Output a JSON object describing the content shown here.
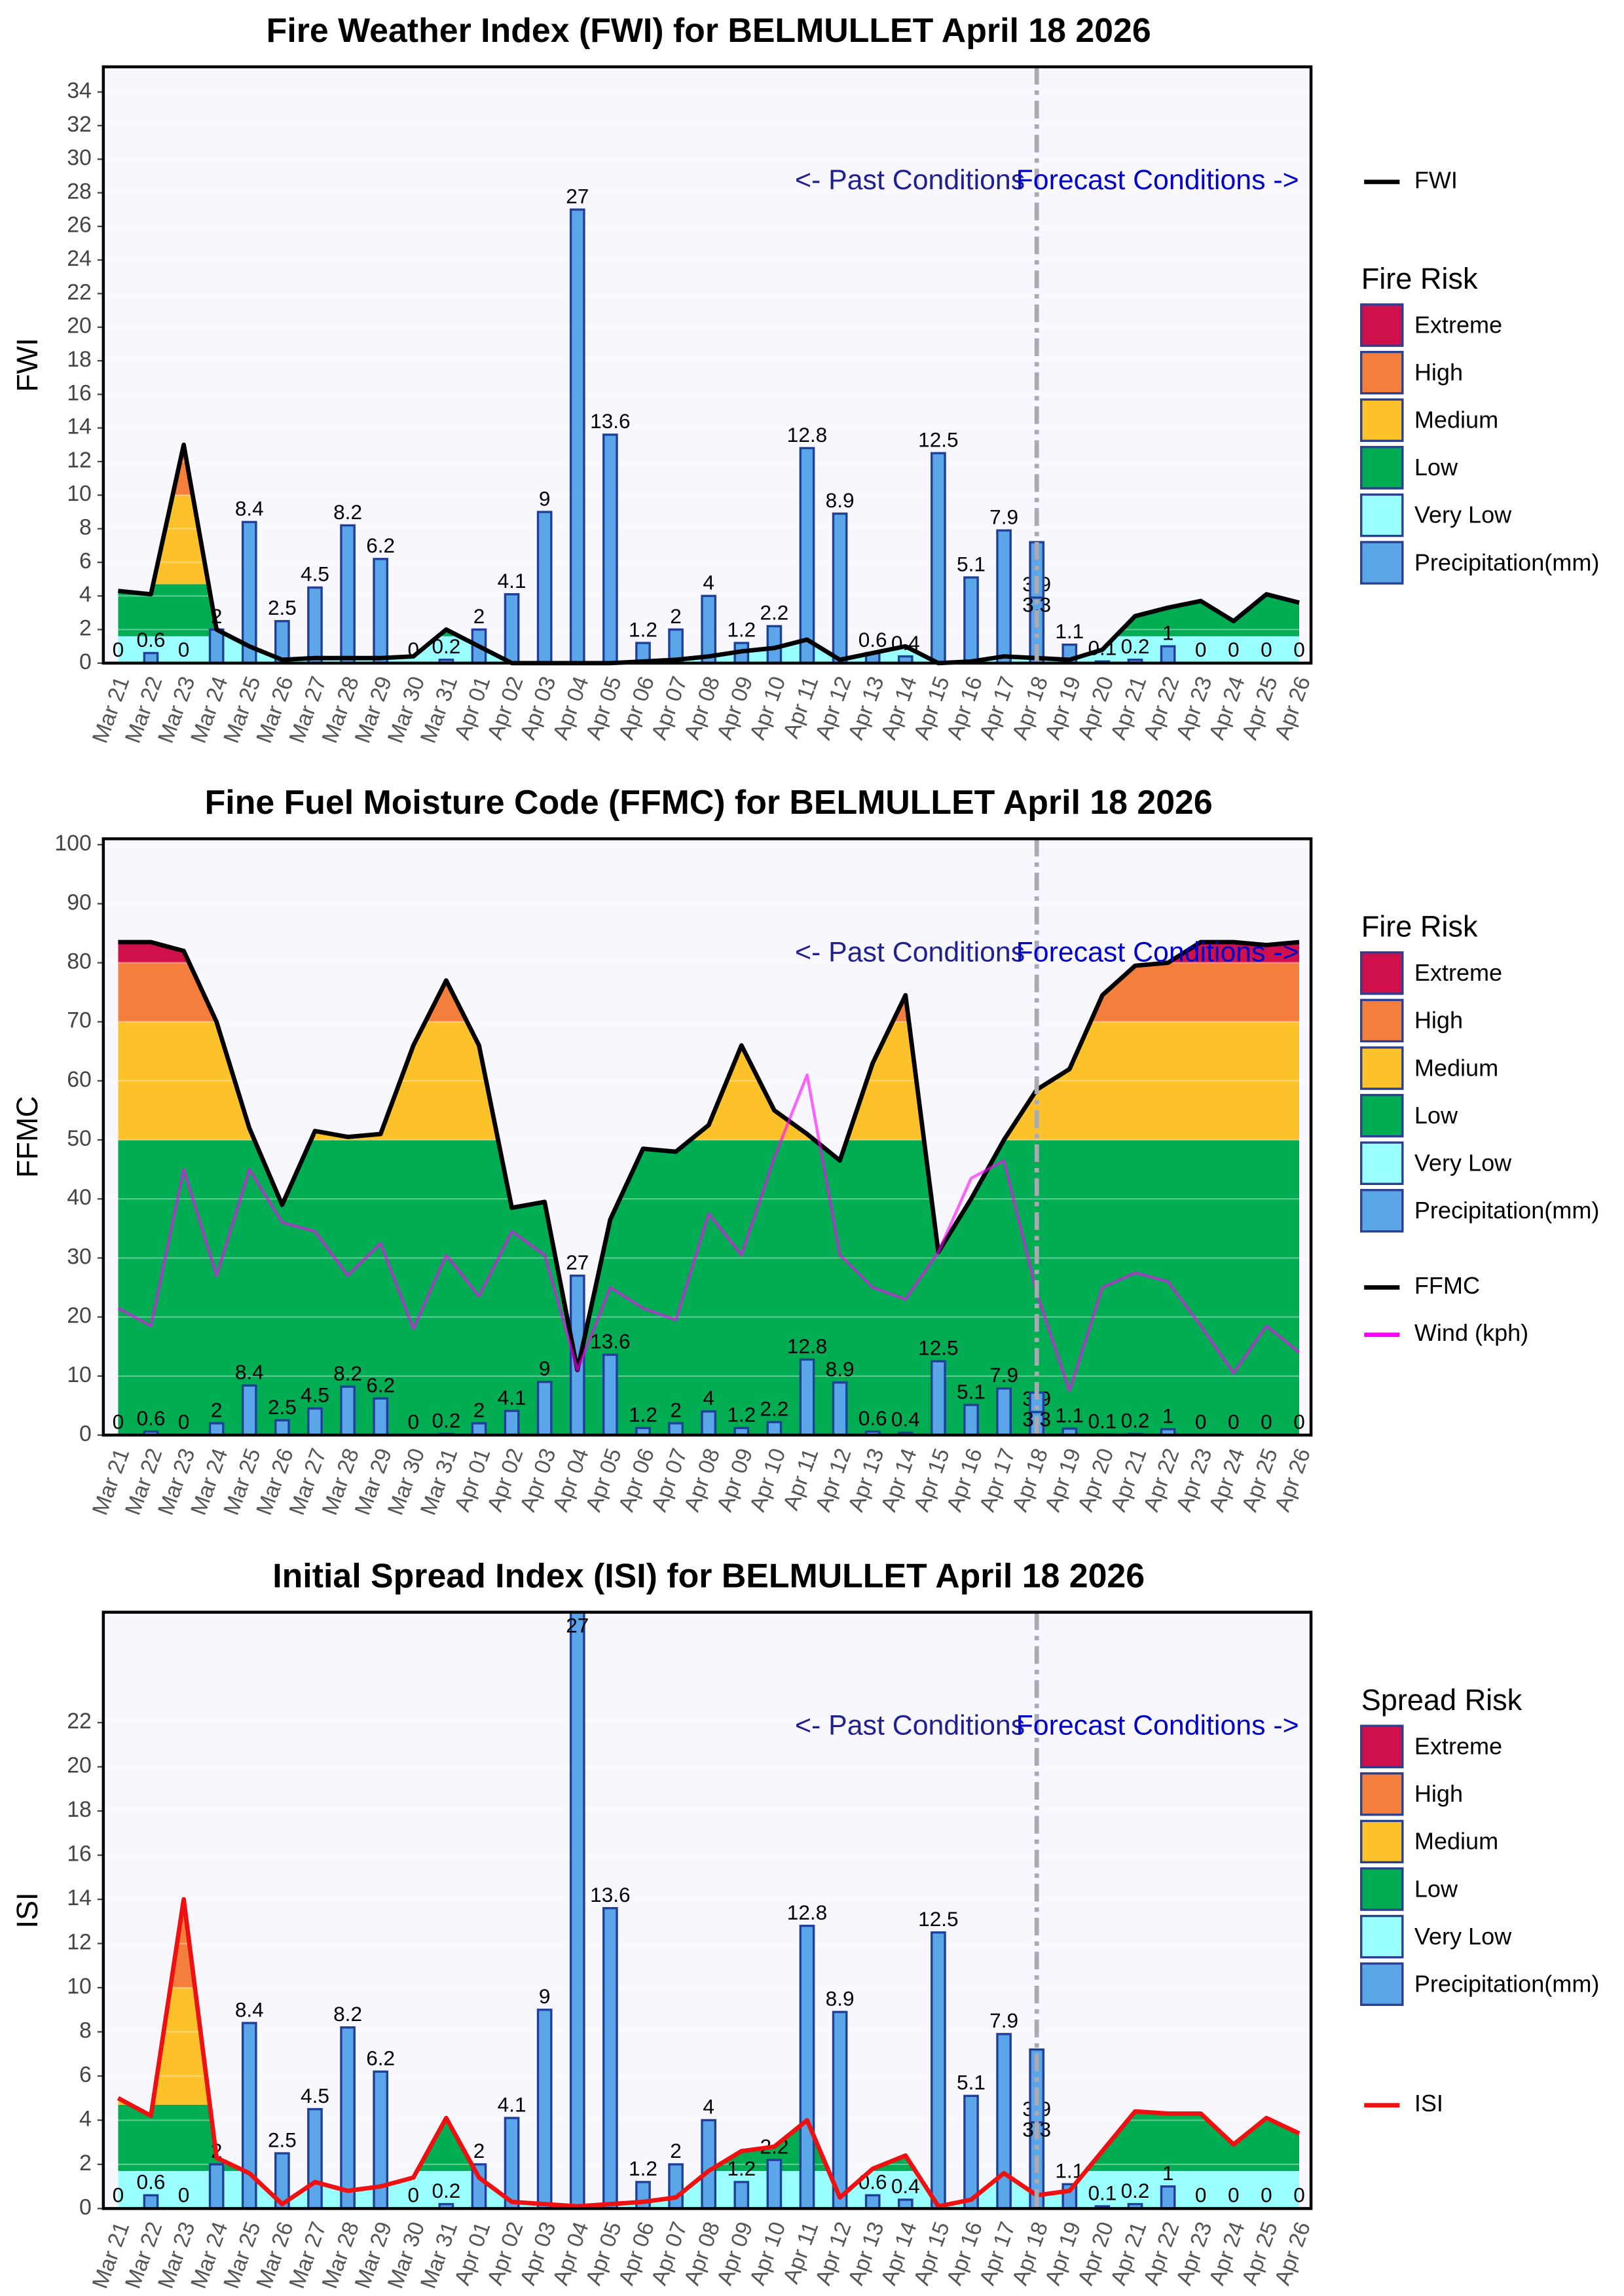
{
  "chart_data": [
    {
      "type": "line",
      "title": "Fire Weather Index (FWI) for BELMULLET April 18 2026",
      "y_label": "FWI",
      "categories": [
        "Mar 21",
        "Mar 22",
        "Mar 23",
        "Mar 24",
        "Mar 25",
        "Mar 26",
        "Mar 27",
        "Mar 28",
        "Mar 29",
        "Mar 30",
        "Mar 31",
        "Apr 01",
        "Apr 02",
        "Apr 03",
        "Apr 04",
        "Apr 05",
        "Apr 06",
        "Apr 07",
        "Apr 08",
        "Apr 09",
        "Apr 10",
        "Apr 11",
        "Apr 12",
        "Apr 13",
        "Apr 14",
        "Apr 15",
        "Apr 16",
        "Apr 17",
        "Apr 18",
        "Apr 19",
        "Apr 20",
        "Apr 21",
        "Apr 22",
        "Apr 23",
        "Apr 24",
        "Apr 25",
        "Apr 26"
      ],
      "ylim": [
        0,
        35.5
      ],
      "yticks": [
        0,
        2,
        4,
        6,
        8,
        10,
        12,
        14,
        16,
        18,
        20,
        22,
        24,
        26,
        28,
        30,
        32,
        34
      ],
      "grid": true,
      "legend_title": "Fire Risk",
      "bands": [
        {
          "name": "Very Low",
          "color": "#99ffff",
          "to": 1.6
        },
        {
          "name": "Low",
          "color": "#00ad52",
          "to": 4.7
        },
        {
          "name": "Medium",
          "color": "#fdc12a",
          "to": 10
        },
        {
          "name": "High",
          "color": "#f47f3c",
          "to": 18
        },
        {
          "name": "Extreme",
          "color": "#d0104a"
        }
      ],
      "precipitation": {
        "name": "Precipitation(mm)",
        "color": "#5aa6e8",
        "values": [
          0,
          0.6,
          0,
          2,
          8.4,
          2.5,
          4.5,
          8.2,
          6.2,
          0,
          0.2,
          2,
          4.1,
          9,
          27,
          13.6,
          1.2,
          2,
          4,
          1.2,
          2.2,
          12.8,
          8.9,
          0.6,
          0.4,
          12.5,
          5.1,
          7.9,
          3.9,
          1.1,
          0.1,
          0.2,
          1,
          0,
          0,
          0,
          0
        ],
        "forecast_values": [
          null,
          null,
          null,
          null,
          null,
          null,
          null,
          null,
          null,
          null,
          null,
          null,
          null,
          null,
          null,
          null,
          null,
          null,
          null,
          null,
          null,
          null,
          null,
          null,
          null,
          null,
          null,
          null,
          3.3,
          null,
          null,
          null,
          null,
          null,
          null,
          null,
          null
        ]
      },
      "series": [
        {
          "name": "FWI",
          "color": "#000000",
          "values": [
            4.3,
            4.1,
            13,
            2,
            1,
            0.2,
            0.3,
            0.3,
            0.3,
            0.4,
            2,
            1,
            0,
            0,
            0,
            0,
            0.1,
            0.2,
            0.4,
            0.7,
            0.9,
            1.4,
            0.2,
            0.6,
            1,
            0,
            0.1,
            0.4,
            0.3,
            0.2,
            0.8,
            2.8,
            3.3,
            3.7,
            2.5,
            4.1,
            3.6
          ]
        }
      ],
      "forecast_start": "Apr 18",
      "annotations": {
        "past": "<- Past Conditions",
        "forecast": "Forecast Conditions ->"
      }
    },
    {
      "type": "line",
      "title": "Fine Fuel Moisture Code (FFMC) for BELMULLET April 18 2026",
      "y_label": "FFMC",
      "categories": [
        "Mar 21",
        "Mar 22",
        "Mar 23",
        "Mar 24",
        "Mar 25",
        "Mar 26",
        "Mar 27",
        "Mar 28",
        "Mar 29",
        "Mar 30",
        "Mar 31",
        "Apr 01",
        "Apr 02",
        "Apr 03",
        "Apr 04",
        "Apr 05",
        "Apr 06",
        "Apr 07",
        "Apr 08",
        "Apr 09",
        "Apr 10",
        "Apr 11",
        "Apr 12",
        "Apr 13",
        "Apr 14",
        "Apr 15",
        "Apr 16",
        "Apr 17",
        "Apr 18",
        "Apr 19",
        "Apr 20",
        "Apr 21",
        "Apr 22",
        "Apr 23",
        "Apr 24",
        "Apr 25",
        "Apr 26"
      ],
      "ylim": [
        0,
        101
      ],
      "yticks": [
        0,
        10,
        20,
        30,
        40,
        50,
        60,
        70,
        80,
        90,
        100
      ],
      "grid": true,
      "legend_title": "Fire Risk",
      "bands": [
        {
          "name": "Very Low",
          "color": "#99ffff",
          "to": 0
        },
        {
          "name": "Low",
          "color": "#00ad52",
          "to": 50
        },
        {
          "name": "Medium",
          "color": "#fdc12a",
          "to": 70
        },
        {
          "name": "High",
          "color": "#f47f3c",
          "to": 80
        },
        {
          "name": "Extreme",
          "color": "#d0104a"
        }
      ],
      "precipitation": {
        "name": "Precipitation(mm)",
        "color": "#5aa6e8",
        "values": [
          0,
          0.6,
          0,
          2,
          8.4,
          2.5,
          4.5,
          8.2,
          6.2,
          0,
          0.2,
          2,
          4.1,
          9,
          27,
          13.6,
          1.2,
          2,
          4,
          1.2,
          2.2,
          12.8,
          8.9,
          0.6,
          0.4,
          12.5,
          5.1,
          7.9,
          3.9,
          1.1,
          0.1,
          0.2,
          1,
          0,
          0,
          0,
          0
        ],
        "forecast_values": [
          null,
          null,
          null,
          null,
          null,
          null,
          null,
          null,
          null,
          null,
          null,
          null,
          null,
          null,
          null,
          null,
          null,
          null,
          null,
          null,
          null,
          null,
          null,
          null,
          null,
          null,
          null,
          null,
          3.3,
          null,
          null,
          null,
          null,
          null,
          null,
          null,
          null
        ]
      },
      "series": [
        {
          "name": "FFMC",
          "color": "#000000",
          "values": [
            83.5,
            83.5,
            82,
            70,
            52,
            39,
            51.5,
            50.5,
            51,
            66,
            77,
            66,
            38.5,
            39.5,
            11,
            36.5,
            48.5,
            48,
            52.5,
            66,
            55,
            51,
            46.5,
            63,
            74.5,
            31,
            40,
            50,
            58.5,
            62,
            74.5,
            79.5,
            80,
            83.5,
            83.5,
            83,
            83.5
          ]
        },
        {
          "name": "Wind (kph)",
          "color": "#ff00ff",
          "values": [
            21.5,
            18.5,
            45,
            27,
            45,
            36,
            34.5,
            27,
            32.5,
            18,
            30.5,
            23.5,
            34.5,
            30.5,
            11,
            25,
            21.5,
            19.5,
            37.5,
            30.5,
            47,
            61,
            30.5,
            25,
            23,
            31,
            43.5,
            46.5,
            24,
            7.5,
            25,
            27.5,
            26,
            18.5,
            10.5,
            18.5,
            14
          ]
        }
      ],
      "forecast_start": "Apr 18",
      "annotations": {
        "past": "<- Past Conditions",
        "forecast": "Forecast Conditions ->"
      }
    },
    {
      "type": "line",
      "title": "Initial Spread Index (ISI) for BELMULLET April 18 2026",
      "y_label": "ISI",
      "categories": [
        "Mar 21",
        "Mar 22",
        "Mar 23",
        "Mar 24",
        "Mar 25",
        "Mar 26",
        "Mar 27",
        "Mar 28",
        "Mar 29",
        "Mar 30",
        "Mar 31",
        "Apr 01",
        "Apr 02",
        "Apr 03",
        "Apr 04",
        "Apr 05",
        "Apr 06",
        "Apr 07",
        "Apr 08",
        "Apr 09",
        "Apr 10",
        "Apr 11",
        "Apr 12",
        "Apr 13",
        "Apr 14",
        "Apr 15",
        "Apr 16",
        "Apr 17",
        "Apr 18",
        "Apr 19",
        "Apr 20",
        "Apr 21",
        "Apr 22",
        "Apr 23",
        "Apr 24",
        "Apr 25",
        "Apr 26"
      ],
      "ylim": [
        0,
        27
      ],
      "yticks": [
        0,
        2,
        4,
        6,
        8,
        10,
        12,
        14,
        16,
        18,
        20,
        22
      ],
      "grid": true,
      "legend_title": "Spread Risk",
      "bands": [
        {
          "name": "Very Low",
          "color": "#99ffff",
          "to": 1.7
        },
        {
          "name": "Low",
          "color": "#00ad52",
          "to": 4.7
        },
        {
          "name": "Medium",
          "color": "#fdc12a",
          "to": 10
        },
        {
          "name": "High",
          "color": "#f47f3c",
          "to": 16
        },
        {
          "name": "Extreme",
          "color": "#d0104a"
        }
      ],
      "precipitation": {
        "name": "Precipitation(mm)",
        "color": "#5aa6e8",
        "values": [
          0,
          0.6,
          0,
          2,
          8.4,
          2.5,
          4.5,
          8.2,
          6.2,
          0,
          0.2,
          2,
          4.1,
          9,
          27,
          13.6,
          1.2,
          2,
          4,
          1.2,
          2.2,
          12.8,
          8.9,
          0.6,
          0.4,
          12.5,
          5.1,
          7.9,
          3.9,
          1.1,
          0.1,
          0.2,
          1,
          0,
          0,
          0,
          0
        ],
        "forecast_values": [
          null,
          null,
          null,
          null,
          null,
          null,
          null,
          null,
          null,
          null,
          null,
          null,
          null,
          null,
          null,
          null,
          null,
          null,
          null,
          null,
          null,
          null,
          null,
          null,
          null,
          null,
          null,
          null,
          3.3,
          null,
          null,
          null,
          null,
          null,
          null,
          null,
          null
        ]
      },
      "series": [
        {
          "name": "ISI",
          "color": "#ee1111",
          "values": [
            5,
            4.2,
            14,
            2.3,
            1.6,
            0.2,
            1.2,
            0.8,
            1,
            1.4,
            4.1,
            1.4,
            0.3,
            0.2,
            0.1,
            0.2,
            0.3,
            0.5,
            1.7,
            2.6,
            2.8,
            4,
            0.5,
            1.8,
            2.4,
            0.1,
            0.4,
            1.6,
            0.6,
            0.8,
            2.6,
            4.4,
            4.3,
            4.3,
            2.9,
            4.1,
            3.4
          ]
        }
      ],
      "forecast_start": "Apr 18",
      "annotations": {
        "past": "<- Past Conditions",
        "forecast": "Forecast Conditions ->"
      }
    }
  ]
}
